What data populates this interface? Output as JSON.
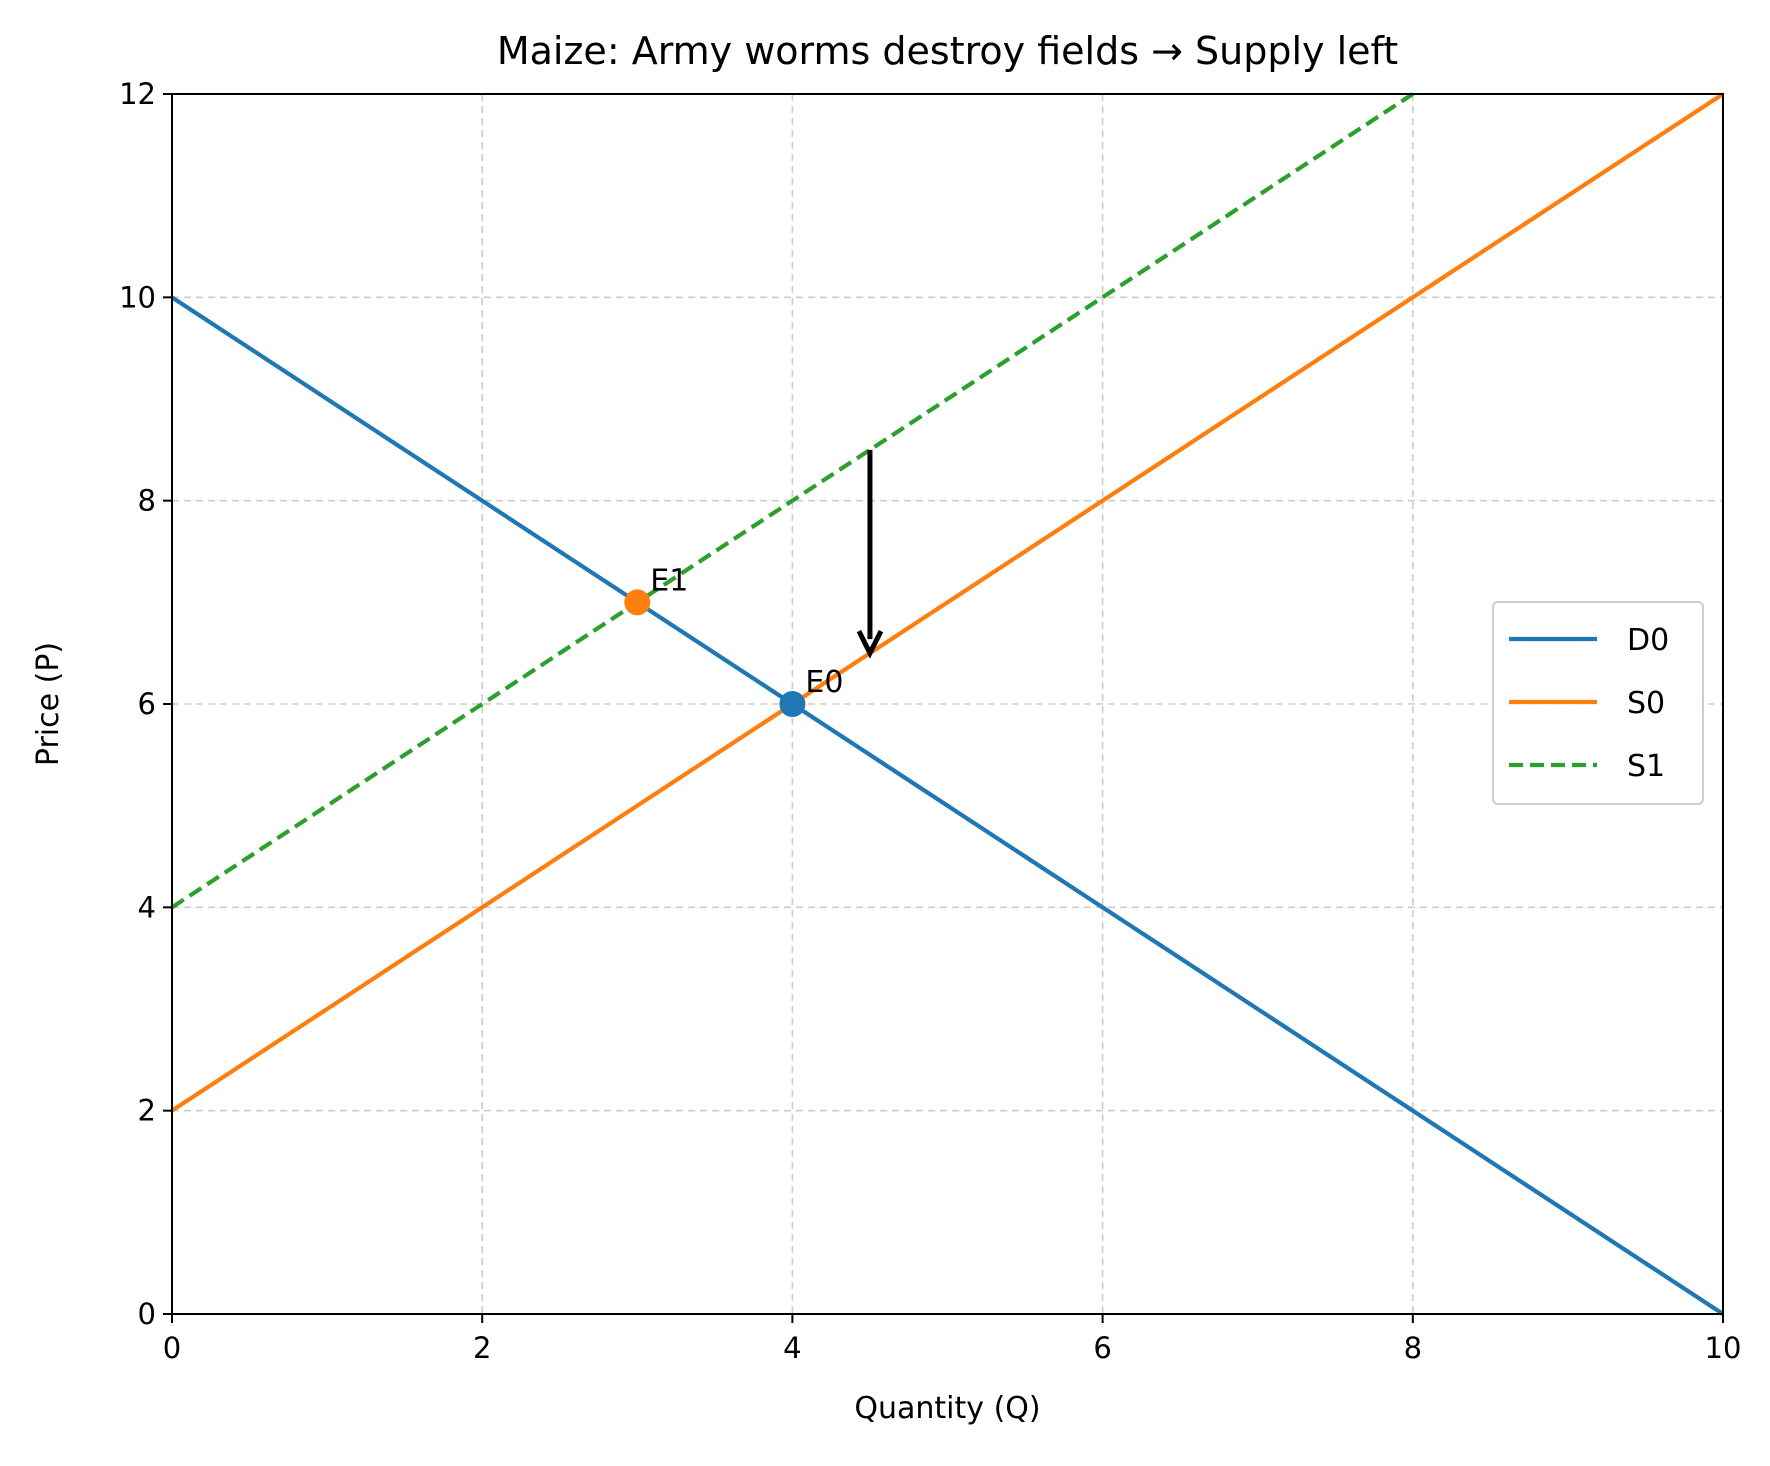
{
  "chart_data": {
    "type": "line",
    "title": "Maize: Army worms destroy fields → Supply left",
    "xlabel": "Quantity (Q)",
    "ylabel": "Price (P)",
    "xlim": [
      0,
      10
    ],
    "ylim": [
      0,
      12
    ],
    "xticks": [
      0,
      2,
      4,
      6,
      8,
      10
    ],
    "yticks": [
      0,
      2,
      4,
      6,
      8,
      10,
      12
    ],
    "grid": true,
    "legend_position": "center-right",
    "series": [
      {
        "name": "D0",
        "x": [
          0,
          10
        ],
        "y": [
          10,
          0
        ],
        "color": "#1f77b4",
        "style": "solid"
      },
      {
        "name": "S0",
        "x": [
          0,
          10
        ],
        "y": [
          2,
          12
        ],
        "color": "#ff7f0e",
        "style": "solid"
      },
      {
        "name": "S1",
        "x": [
          0,
          8
        ],
        "y": [
          4,
          12
        ],
        "color": "#2ca02c",
        "style": "dashed"
      }
    ],
    "points": [
      {
        "label": "E0",
        "x": 4,
        "y": 6,
        "color": "#1f77b4"
      },
      {
        "label": "E1",
        "x": 3,
        "y": 7,
        "color": "#ff7f0e"
      }
    ],
    "arrows": [
      {
        "from": [
          4.5,
          8.5
        ],
        "to": [
          4.5,
          6.5
        ],
        "color": "#000000"
      }
    ]
  }
}
